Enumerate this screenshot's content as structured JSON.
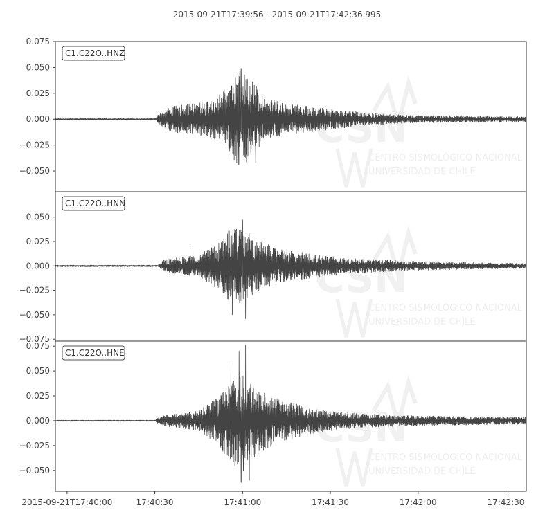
{
  "title": "2015-09-21T17:39:56  -  2015-09-21T17:42:36.995",
  "chart_data": {
    "type": "line",
    "time_range": [
      "2015-09-21T17:39:56",
      "2015-09-21T17:42:36.995"
    ],
    "x_ticks": [
      {
        "time": "2015-09-21T17:40:00",
        "label": "2015-09-21T17:40:00"
      },
      {
        "time": "2015-09-21T17:40:30",
        "label": "17:40:30"
      },
      {
        "time": "2015-09-21T17:41:00",
        "label": "17:41:00"
      },
      {
        "time": "2015-09-21T17:41:30",
        "label": "17:41:30"
      },
      {
        "time": "2015-09-21T17:42:00",
        "label": "17:42:00"
      },
      {
        "time": "2015-09-21T17:42:30",
        "label": "17:42:30"
      }
    ],
    "line_color": "#444444",
    "grid": false,
    "watermark": {
      "logo": "CSN",
      "lines": [
        "CENTRO SISMOLÓGICO NACIONAL",
        "UNIVERSIDAD DE CHILE"
      ]
    },
    "traces": [
      {
        "label": "C1.C22O..HNZ",
        "ylim": [
          -0.07,
          0.075
        ],
        "y_ticks": [
          {
            "value": 0.075,
            "label": "0.075"
          },
          {
            "value": 0.05,
            "label": "0.050"
          },
          {
            "value": 0.025,
            "label": "0.025"
          },
          {
            "value": 0.0,
            "label": "0.000"
          },
          {
            "value": -0.025,
            "label": "−0.025"
          },
          {
            "value": -0.05,
            "label": "−0.050"
          }
        ],
        "envelope": [
          {
            "time": "2015-09-21T17:39:56",
            "amp": 0.0006
          },
          {
            "time": "2015-09-21T17:40:30",
            "amp": 0.0006
          },
          {
            "time": "2015-09-21T17:40:31",
            "amp": 0.004
          },
          {
            "time": "2015-09-21T17:40:35",
            "amp": 0.012
          },
          {
            "time": "2015-09-21T17:40:50",
            "amp": 0.018
          },
          {
            "time": "2015-09-21T17:40:55",
            "amp": 0.032
          },
          {
            "time": "2015-09-21T17:40:59",
            "amp": 0.046
          },
          {
            "time": "2015-09-21T17:41:03",
            "amp": 0.04
          },
          {
            "time": "2015-09-21T17:41:07",
            "amp": 0.022
          },
          {
            "time": "2015-09-21T17:41:15",
            "amp": 0.015
          },
          {
            "time": "2015-09-21T17:41:30",
            "amp": 0.01
          },
          {
            "time": "2015-09-21T17:41:45",
            "amp": 0.0055
          },
          {
            "time": "2015-09-21T17:42:00",
            "amp": 0.0035
          },
          {
            "time": "2015-09-21T17:42:36.995",
            "amp": 0.0025
          }
        ],
        "peaks": [
          {
            "time": "2015-09-21T17:40:59.5",
            "value": 0.049
          },
          {
            "time": "2015-09-21T17:40:58.7",
            "value": -0.044
          },
          {
            "time": "2015-09-21T17:41:04.5",
            "value": -0.042
          },
          {
            "time": "2015-09-21T17:41:00.5",
            "value": 0.043
          },
          {
            "time": "2015-09-21T17:40:56",
            "value": -0.036
          }
        ]
      },
      {
        "label": "C1.C22O..HNN",
        "ylim": [
          -0.077,
          0.076
        ],
        "y_ticks": [
          {
            "value": 0.05,
            "label": "0.050"
          },
          {
            "value": 0.025,
            "label": "0.025"
          },
          {
            "value": 0.0,
            "label": "0.000"
          },
          {
            "value": -0.025,
            "label": "−0.025"
          },
          {
            "value": -0.05,
            "label": "−0.050"
          },
          {
            "value": -0.075,
            "label": "−0.075"
          }
        ],
        "envelope": [
          {
            "time": "2015-09-21T17:39:56",
            "amp": 0.0008
          },
          {
            "time": "2015-09-21T17:40:31",
            "amp": 0.0008
          },
          {
            "time": "2015-09-21T17:40:33",
            "amp": 0.006
          },
          {
            "time": "2015-09-21T17:40:45",
            "amp": 0.012
          },
          {
            "time": "2015-09-21T17:40:50",
            "amp": 0.02
          },
          {
            "time": "2015-09-21T17:40:55",
            "amp": 0.036
          },
          {
            "time": "2015-09-21T17:40:59",
            "amp": 0.04
          },
          {
            "time": "2015-09-21T17:41:04",
            "amp": 0.03
          },
          {
            "time": "2015-09-21T17:41:10",
            "amp": 0.02
          },
          {
            "time": "2015-09-21T17:41:20",
            "amp": 0.014
          },
          {
            "time": "2015-09-21T17:41:35",
            "amp": 0.008
          },
          {
            "time": "2015-09-21T17:42:00",
            "amp": 0.0045
          },
          {
            "time": "2015-09-21T17:42:36.995",
            "amp": 0.0025
          }
        ],
        "peaks": [
          {
            "time": "2015-09-21T17:41:00",
            "value": 0.047
          },
          {
            "time": "2015-09-21T17:41:01",
            "value": -0.054
          },
          {
            "time": "2015-09-21T17:40:56.5",
            "value": -0.05
          },
          {
            "time": "2015-09-21T17:40:56",
            "value": 0.038
          },
          {
            "time": "2015-09-21T17:40:43",
            "value": 0.022
          }
        ]
      },
      {
        "label": "C1.C22O..HNE",
        "ylim": [
          -0.071,
          0.08
        ],
        "y_ticks": [
          {
            "value": 0.075,
            "label": "0.075"
          },
          {
            "value": 0.05,
            "label": "0.050"
          },
          {
            "value": 0.025,
            "label": "0.025"
          },
          {
            "value": 0.0,
            "label": "0.000"
          },
          {
            "value": -0.025,
            "label": "−0.025"
          },
          {
            "value": -0.05,
            "label": "−0.050"
          }
        ],
        "envelope": [
          {
            "time": "2015-09-21T17:39:56",
            "amp": 0.0006
          },
          {
            "time": "2015-09-21T17:40:30",
            "amp": 0.0006
          },
          {
            "time": "2015-09-21T17:40:32",
            "amp": 0.005
          },
          {
            "time": "2015-09-21T17:40:45",
            "amp": 0.01
          },
          {
            "time": "2015-09-21T17:40:52",
            "amp": 0.025
          },
          {
            "time": "2015-09-21T17:40:56",
            "amp": 0.045
          },
          {
            "time": "2015-09-21T17:41:00",
            "amp": 0.05
          },
          {
            "time": "2015-09-21T17:41:05",
            "amp": 0.035
          },
          {
            "time": "2015-09-21T17:41:12",
            "amp": 0.022
          },
          {
            "time": "2015-09-21T17:41:25",
            "amp": 0.012
          },
          {
            "time": "2015-09-21T17:41:40",
            "amp": 0.007
          },
          {
            "time": "2015-09-21T17:42:00",
            "amp": 0.005
          },
          {
            "time": "2015-09-21T17:42:36.995",
            "amp": 0.0035
          }
        ],
        "peaks": [
          {
            "time": "2015-09-21T17:41:01",
            "value": 0.076
          },
          {
            "time": "2015-09-21T17:40:58.8",
            "value": 0.07
          },
          {
            "time": "2015-09-21T17:40:59.5",
            "value": -0.062
          },
          {
            "time": "2015-09-21T17:41:02.3",
            "value": -0.06
          },
          {
            "time": "2015-09-21T17:40:56",
            "value": 0.058
          },
          {
            "time": "2015-09-21T17:41:00.3",
            "value": -0.05
          }
        ]
      }
    ]
  }
}
